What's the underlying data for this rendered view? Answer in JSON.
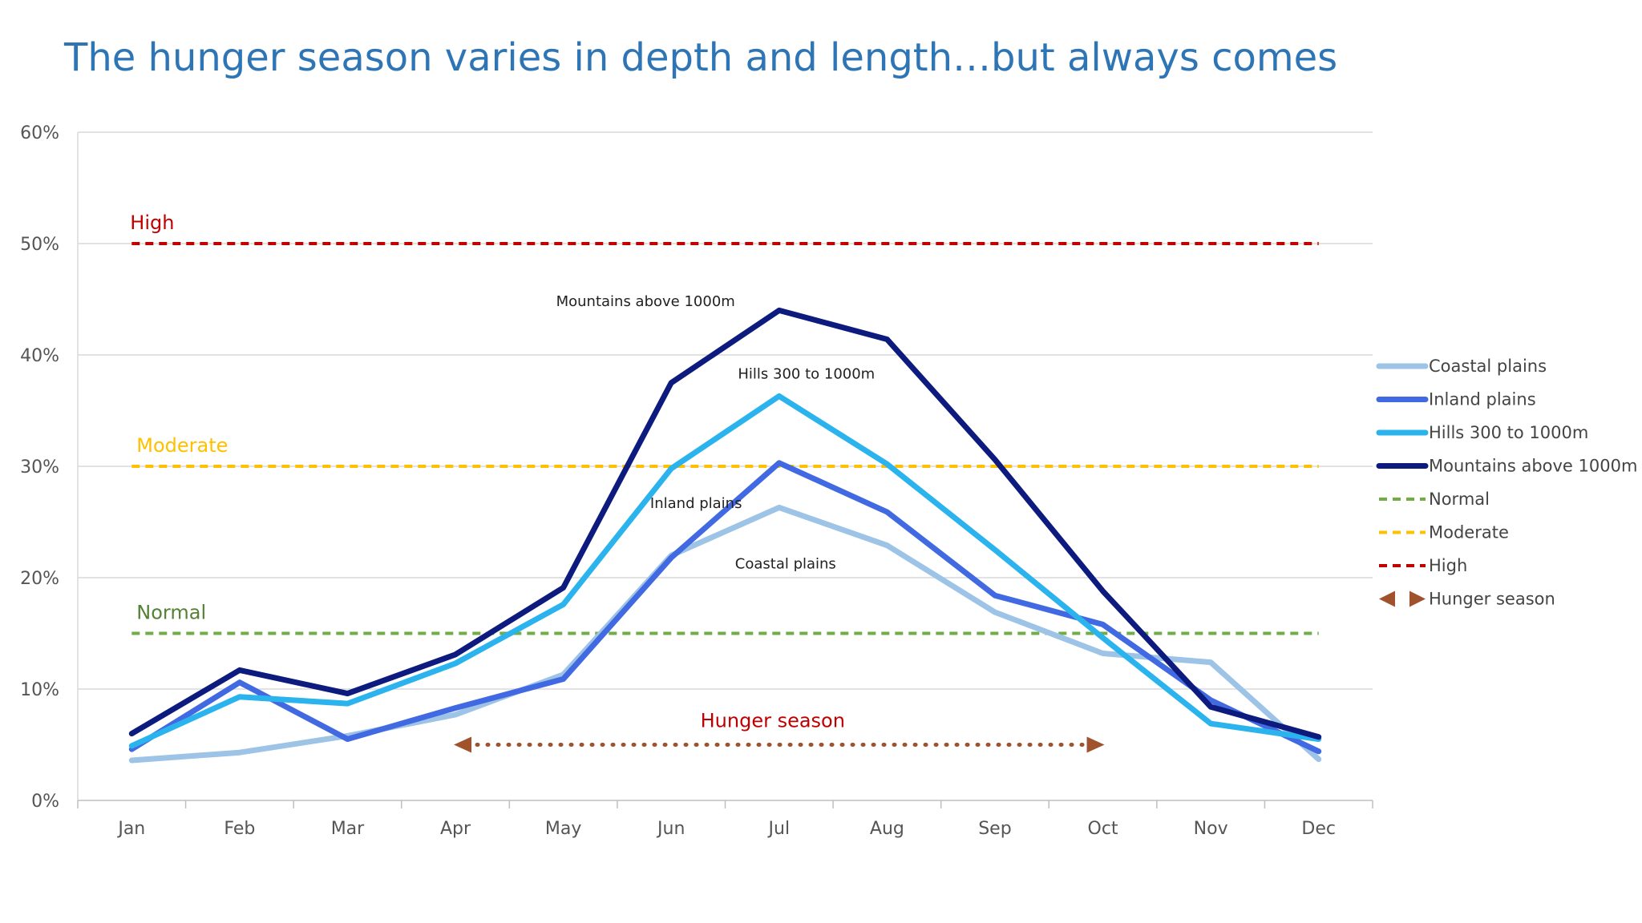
{
  "title": "The hunger season varies in depth and length…but always comes",
  "chart_data": {
    "type": "line",
    "title": "The hunger season varies in depth and length…but always comes",
    "categories": [
      "Jan",
      "Feb",
      "Mar",
      "Apr",
      "May",
      "Jun",
      "Jul",
      "Aug",
      "Sep",
      "Oct",
      "Nov",
      "Dec"
    ],
    "y_ticks": [
      "0%",
      "10%",
      "20%",
      "30%",
      "40%",
      "50%",
      "60%"
    ],
    "ylim": [
      0,
      60
    ],
    "grid": true,
    "legend_position": "right",
    "series": [
      {
        "name": "Coastal plains",
        "color": "#9dc3e6",
        "values": [
          3.6,
          4.3,
          5.8,
          7.7,
          11.3,
          22.0,
          26.3,
          22.9,
          16.9,
          13.2,
          12.4,
          3.7
        ]
      },
      {
        "name": "Inland plains",
        "color": "#4169e1",
        "values": [
          4.6,
          10.6,
          5.5,
          8.3,
          10.9,
          21.8,
          30.3,
          25.9,
          18.4,
          15.8,
          9.0,
          4.4
        ]
      },
      {
        "name": "Hills 300 to 1000m",
        "color": "#2bb3ee",
        "values": [
          4.9,
          9.3,
          8.7,
          12.3,
          17.6,
          29.8,
          36.3,
          30.2,
          22.5,
          14.6,
          6.9,
          5.5
        ]
      },
      {
        "name": "Mountains above 1000m",
        "color": "#0d1a7e",
        "values": [
          6.0,
          11.7,
          9.6,
          13.1,
          19.1,
          37.5,
          44.0,
          41.4,
          30.6,
          18.8,
          8.4,
          5.7
        ]
      }
    ],
    "thresholds": [
      {
        "name": "Normal",
        "value": 15,
        "color": "#70ad47",
        "label": "Normal"
      },
      {
        "name": "Moderate",
        "value": 30,
        "color": "#ffc000",
        "label": "Moderate"
      },
      {
        "name": "High",
        "value": 50,
        "color": "#c00000",
        "label": "High"
      }
    ],
    "hunger_season": {
      "label": "Hunger season",
      "from": "Apr",
      "to": "Oct",
      "value": 5,
      "color": "#a0522d"
    },
    "annotations": [
      {
        "text": "Mountains above 1000m",
        "series": "Mountains above 1000m"
      },
      {
        "text": "Hills 300 to 1000m",
        "series": "Hills 300 to 1000m"
      },
      {
        "text": "Inland plains",
        "series": "Inland plains"
      },
      {
        "text": "Coastal plains",
        "series": "Coastal plains"
      }
    ],
    "legend": [
      "Coastal plains",
      "Inland plains",
      "Hills 300 to 1000m",
      "Mountains above 1000m",
      "Normal",
      "Moderate",
      "High",
      "Hunger season"
    ]
  }
}
